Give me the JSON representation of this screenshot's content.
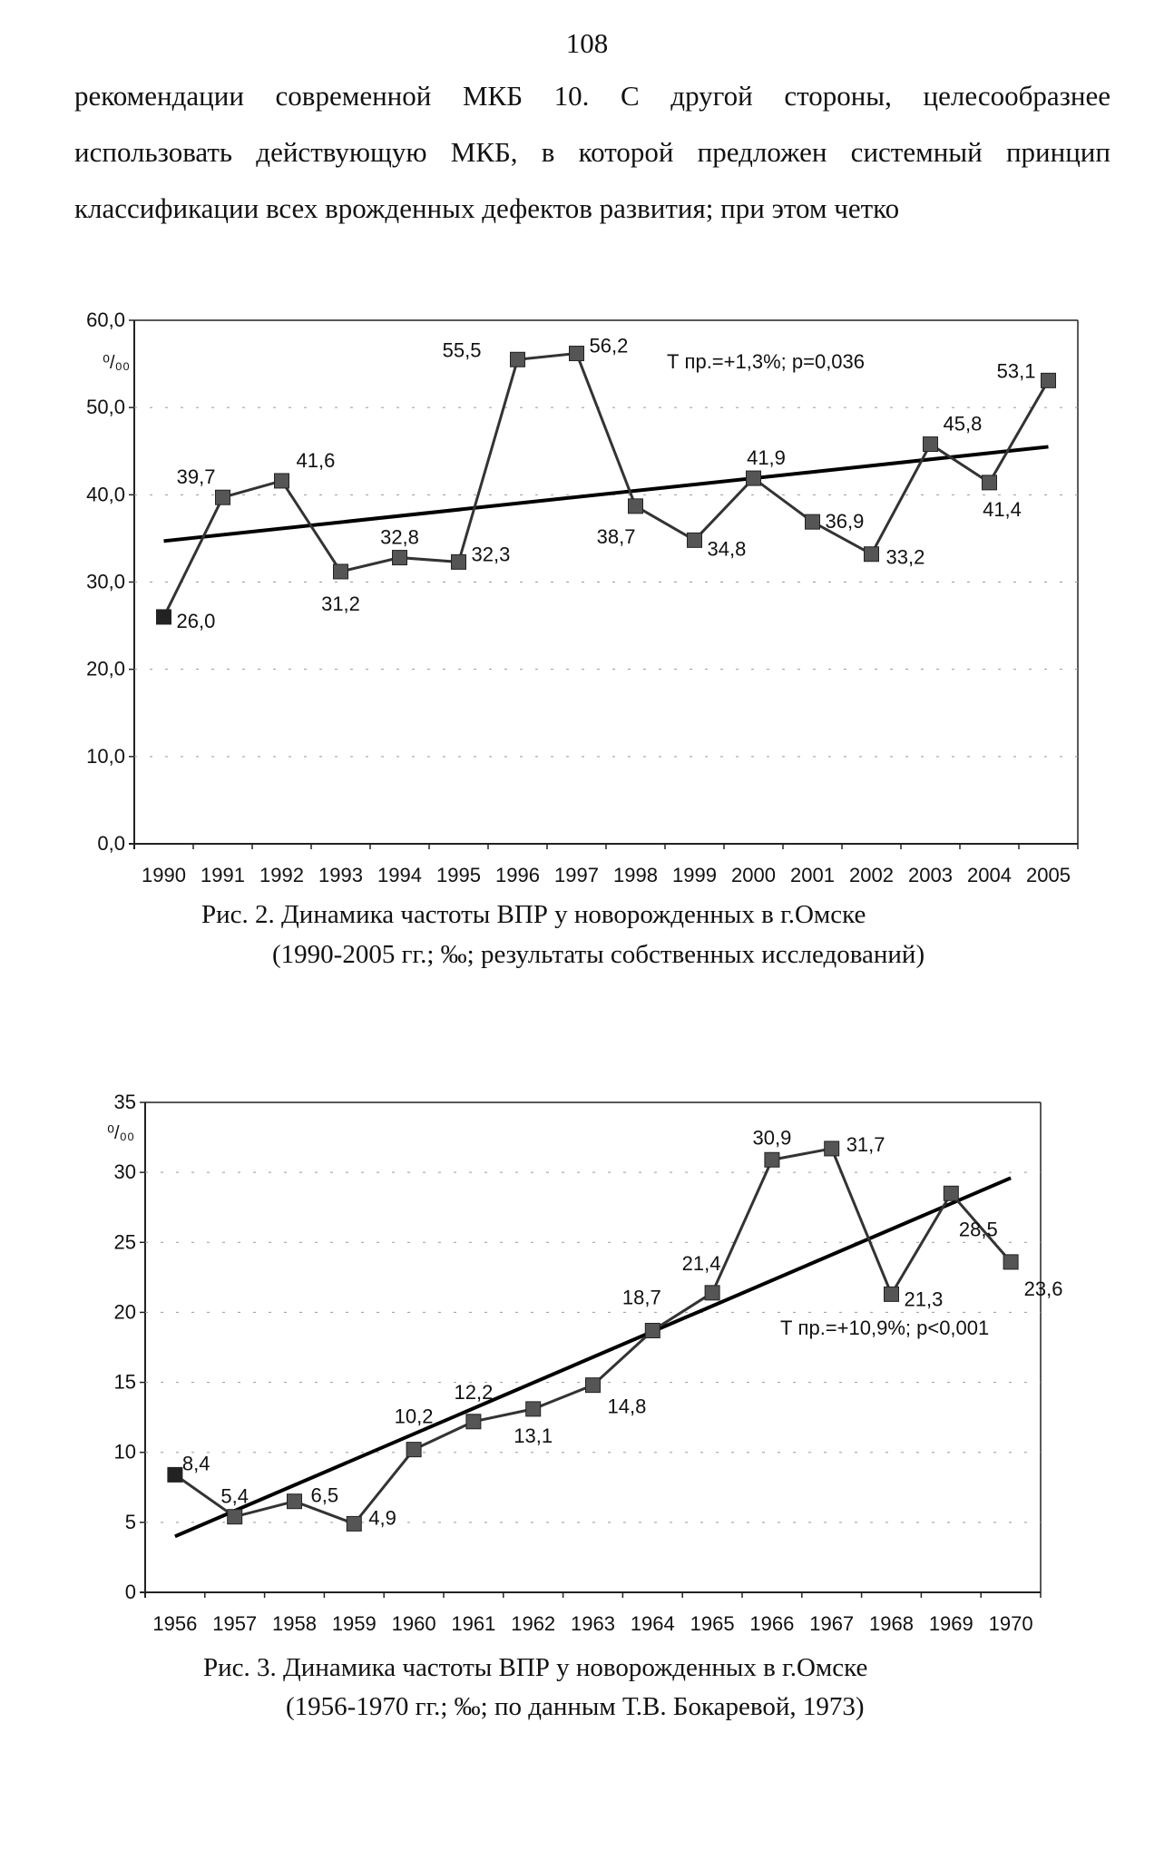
{
  "page_number": "108",
  "paragraph": [
    "рекомендации современной МКБ 10. С другой стороны, целесообразнее",
    "использовать действующую МКБ, в которой предложен системный принцип",
    "классификации всех врожденных дефектов развития; при этом четко"
  ],
  "figures": [
    {
      "caption_line1": "Рис. 2. Динамика частоты ВПР у новорожденных в г.Омске",
      "caption_line2": "(1990-2005 гг.; ‰; результаты собственных исследований)"
    },
    {
      "caption_line1": "Рис. 3. Динамика частоты ВПР у новорожденных в г.Омске",
      "caption_line2": "(1956-1970 гг.; ‰; по данным Т.В. Бокаревой, 1973)"
    }
  ],
  "chart_data": [
    {
      "type": "line",
      "x": [
        "1990",
        "1991",
        "1992",
        "1993",
        "1994",
        "1995",
        "1996",
        "1997",
        "1998",
        "1999",
        "2000",
        "2001",
        "2002",
        "2003",
        "2004",
        "2005"
      ],
      "series": [
        {
          "values": [
            26.0,
            39.7,
            41.6,
            31.2,
            32.8,
            32.3,
            55.5,
            56.2,
            38.7,
            34.8,
            41.9,
            36.9,
            33.2,
            45.8,
            41.4,
            53.1
          ]
        }
      ],
      "data_labels": [
        "26,0",
        "39,7",
        "41,6",
        "31,2",
        "32,8",
        "32,3",
        "55,5",
        "56,2",
        "38,7",
        "34,8",
        "41,9",
        "36,9",
        "33,2",
        "45,8",
        "41,4",
        "53,1"
      ],
      "trendline": {
        "start": 34.7,
        "end": 45.5
      },
      "annotation": "Т пр.=+1,3%; р=0,036",
      "ylabel": "⁰/₀₀",
      "yticks": [
        "0,0",
        "10,0",
        "20,0",
        "30,0",
        "40,0",
        "50,0",
        "60,0"
      ],
      "ylim": [
        0,
        60
      ],
      "grid": "dashed horizontal",
      "line_color": "#333333",
      "marker_color": "#555555"
    },
    {
      "type": "line",
      "x": [
        "1956",
        "1957",
        "1958",
        "1959",
        "1960",
        "1961",
        "1962",
        "1963",
        "1964",
        "1965",
        "1966",
        "1967",
        "1968",
        "1969",
        "1970"
      ],
      "series": [
        {
          "values": [
            8.4,
            5.4,
            6.5,
            4.9,
            10.2,
            12.2,
            13.1,
            14.8,
            18.7,
            21.4,
            30.9,
            31.7,
            21.3,
            28.5,
            23.6
          ]
        }
      ],
      "data_labels": [
        "8,4",
        "5,4",
        "6,5",
        "4,9",
        "10,2",
        "12,2",
        "13,1",
        "14,8",
        "18,7",
        "21,4",
        "30,9",
        "31,7",
        "21,3",
        "28,5",
        "23,6"
      ],
      "trendline": {
        "start": 4.0,
        "end": 29.6
      },
      "annotation": "Т пр.=+10,9%; р<0,001",
      "ylabel": "⁰/₀₀",
      "yticks": [
        "0",
        "5",
        "10",
        "15",
        "20",
        "25",
        "30",
        "35"
      ],
      "ylim": [
        0,
        35
      ],
      "grid": "dashed horizontal",
      "line_color": "#333333",
      "marker_color": "#555555"
    }
  ]
}
